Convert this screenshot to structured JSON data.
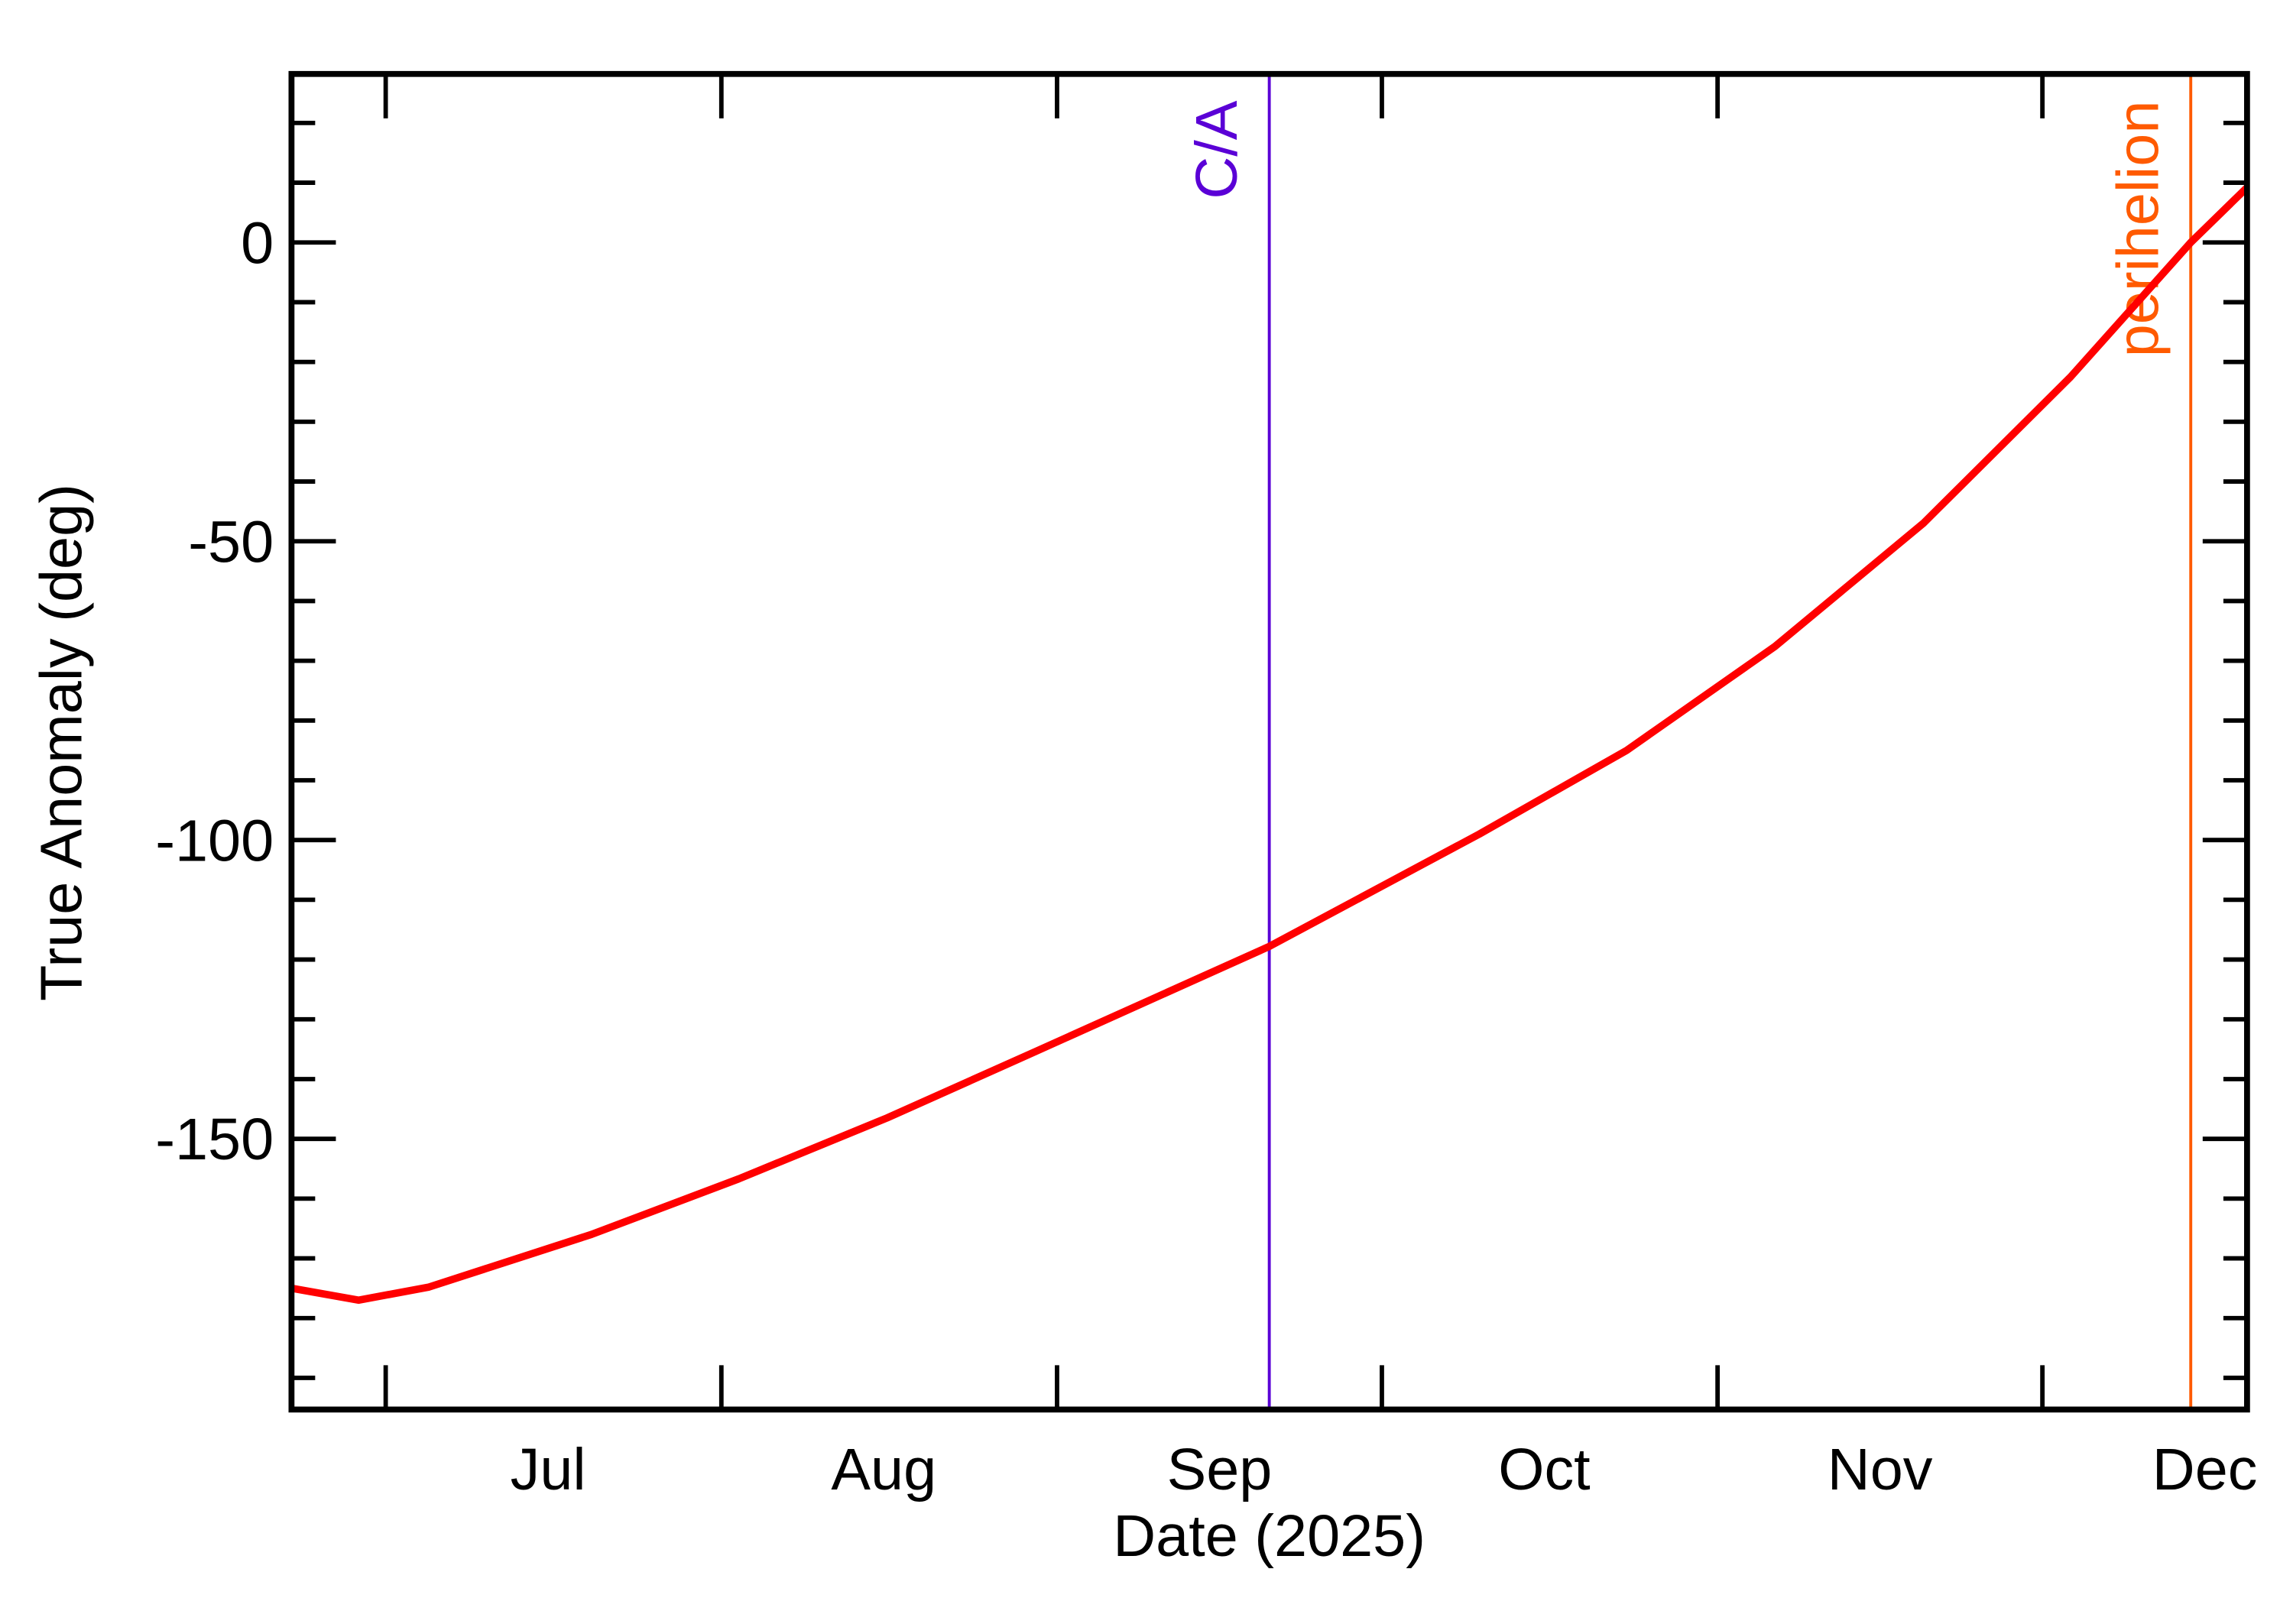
{
  "chart_data": {
    "type": "line",
    "xlabel": "Date (2025)",
    "ylabel": "True Anomaly (deg)",
    "x": [
      173.3,
      179.5,
      186,
      201,
      214.6,
      228.3,
      242,
      263.6,
      283,
      296.6,
      310.3,
      324,
      337.6,
      348.7,
      353.9
    ],
    "series": [
      {
        "color": "#ff0000",
        "values": [
          -175,
          -177,
          -174.8,
          -166,
          -156.7,
          -146.5,
          -135.4,
          -117.8,
          -99,
          -85,
          -67.6,
          -47,
          -22.5,
          0,
          9.2
        ]
      }
    ],
    "xlim": [
      173.3,
      353.9
    ],
    "xticks": [
      182,
      213,
      244,
      274,
      305,
      335
    ],
    "xtick_labels": [
      {
        "value": 197,
        "label": "Jul"
      },
      {
        "value": 228,
        "label": "Aug"
      },
      {
        "value": 259,
        "label": "Sep"
      },
      {
        "value": 289,
        "label": "Oct"
      },
      {
        "value": 320,
        "label": "Nov"
      },
      {
        "value": 350,
        "label": "Dec"
      }
    ],
    "ylim": [
      -195.3,
      28.2
    ],
    "yticks": [
      -150,
      -100,
      -50,
      0
    ],
    "yminorticks": [
      -190,
      -180,
      -170,
      -160,
      -140,
      -130,
      -120,
      -110,
      -90,
      -80,
      -70,
      -60,
      -40,
      -30,
      -20,
      -10,
      10,
      20
    ],
    "vlines": [
      {
        "x": 263.6,
        "label": "C/A",
        "color": "#5a00d6"
      },
      {
        "x": 348.7,
        "label": "perihelion",
        "color": "#ff5a00"
      }
    ]
  }
}
